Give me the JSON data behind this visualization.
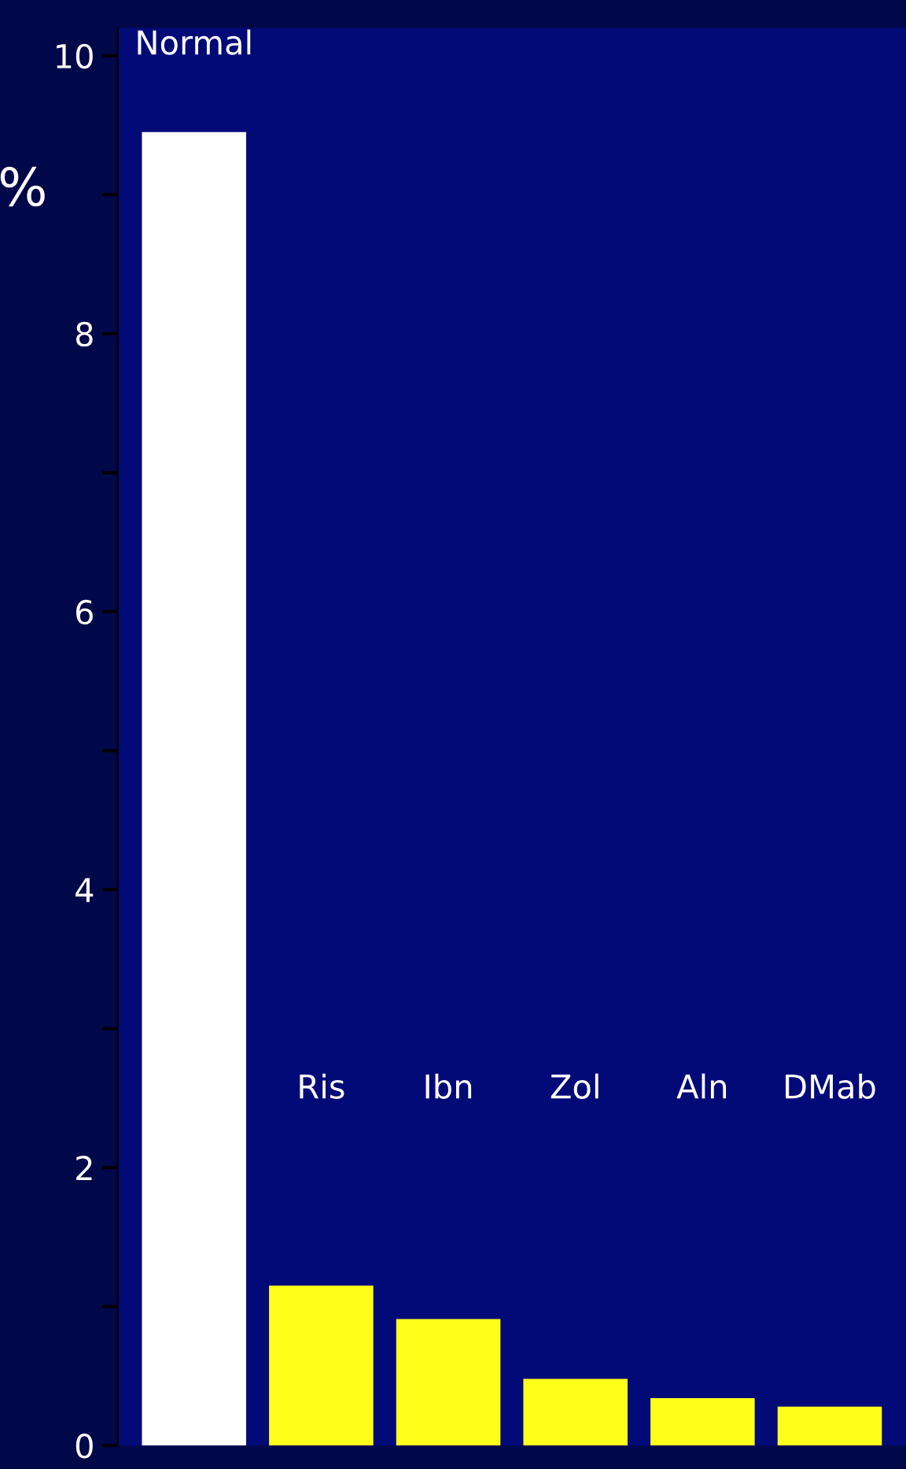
{
  "chart_data": {
    "type": "bar",
    "ylabel": "%",
    "categories": [
      "Normal",
      "Ris",
      "Ibn",
      "Zol",
      "Aln",
      "DMab"
    ],
    "values": [
      9.45,
      1.15,
      0.91,
      0.48,
      0.34,
      0.28
    ],
    "colors": [
      "#ffffff",
      "#ffff1a",
      "#ffff1a",
      "#ffff1a",
      "#ffff1a",
      "#ffff1a"
    ],
    "ylim": [
      0,
      10.2
    ],
    "yticks": [
      0,
      {
        "value": 1,
        "label": null
      },
      2,
      {
        "value": 3,
        "label": null
      },
      4,
      {
        "value": 5,
        "label": null
      },
      6,
      {
        "value": 7,
        "label": null
      },
      8,
      {
        "value": 9,
        "label": null
      },
      10
    ],
    "grid": false,
    "legend": false
  }
}
